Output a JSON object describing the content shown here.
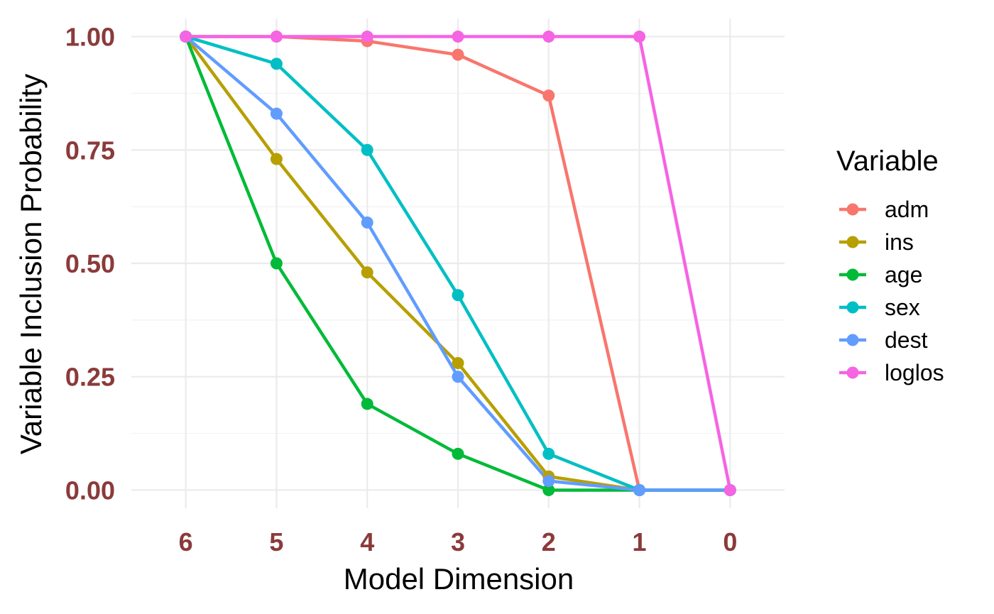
{
  "chart_data": {
    "type": "line",
    "title": "",
    "xlabel": "Model Dimension",
    "ylabel": "Variable Inclusion Probability",
    "x": [
      6,
      5,
      4,
      3,
      2,
      1,
      0
    ],
    "x_tick_labels": [
      "6",
      "5",
      "4",
      "3",
      "2",
      "1",
      "0"
    ],
    "x_reversed": true,
    "y_ticks": [
      0,
      0.25,
      0.5,
      0.75,
      1
    ],
    "y_tick_labels": [
      "0.00",
      "0.25",
      "0.50",
      "0.75",
      "1.00"
    ],
    "ylim": [
      -0.04,
      1.04
    ],
    "grid": true,
    "legend_title": "Variable",
    "legend_position": "right",
    "series": [
      {
        "name": "adm",
        "color": "#F8766D",
        "values": [
          1,
          1,
          0.99,
          0.96,
          0.87,
          0,
          0
        ]
      },
      {
        "name": "ins",
        "color": "#B79F00",
        "values": [
          1,
          0.73,
          0.48,
          0.28,
          0.03,
          0,
          0
        ]
      },
      {
        "name": "age",
        "color": "#00BA38",
        "values": [
          1,
          0.5,
          0.19,
          0.08,
          0,
          0,
          0
        ]
      },
      {
        "name": "sex",
        "color": "#00BFC4",
        "values": [
          1,
          0.94,
          0.75,
          0.43,
          0.08,
          0,
          0
        ]
      },
      {
        "name": "dest",
        "color": "#619CFF",
        "values": [
          1,
          0.83,
          0.59,
          0.25,
          0.02,
          0,
          0
        ]
      },
      {
        "name": "loglos",
        "color": "#F564E3",
        "values": [
          1,
          1,
          1,
          1,
          1,
          1,
          0
        ]
      }
    ]
  }
}
